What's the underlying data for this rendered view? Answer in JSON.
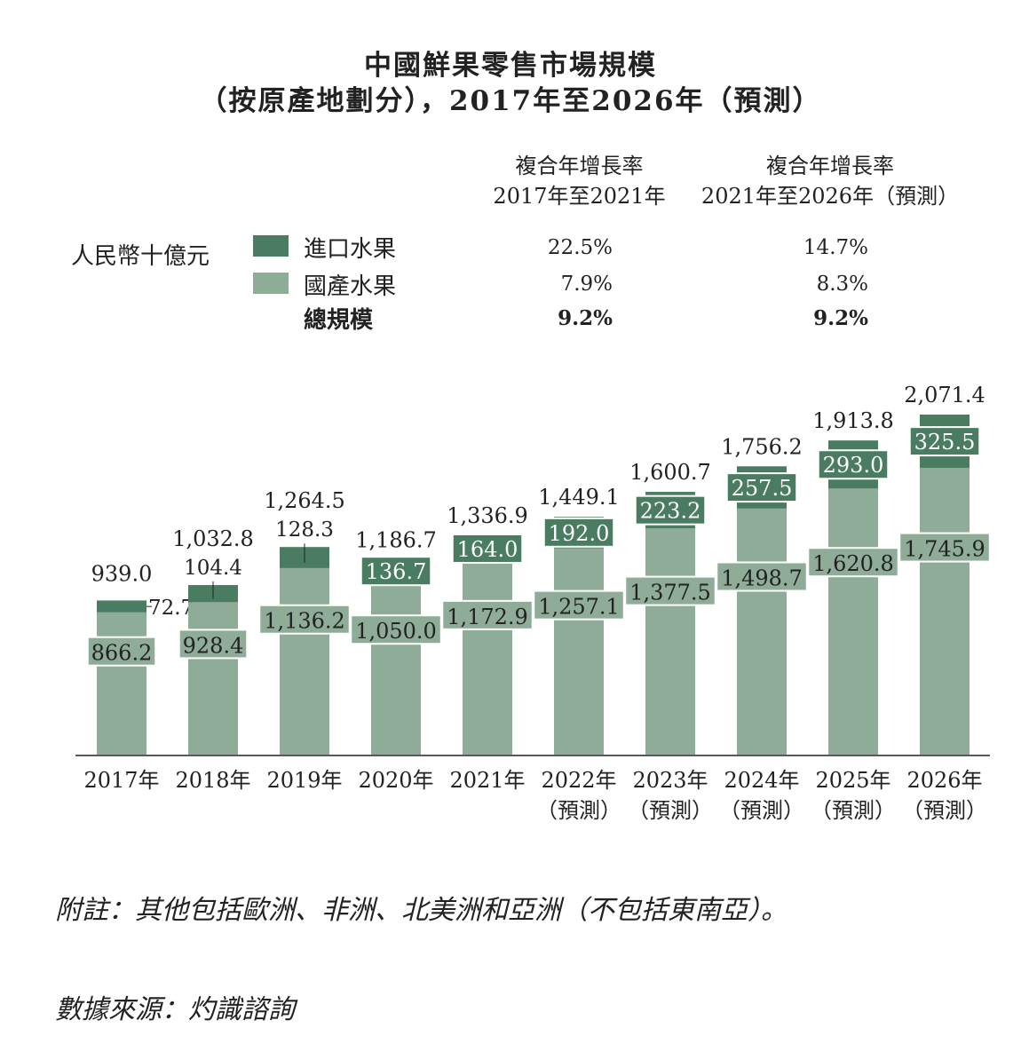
{
  "title": {
    "line1": "中國鮮果零售市場規模",
    "line2": "（按原產地劃分），2017年至2026年（預測）"
  },
  "unit_label": "人民幣十億元",
  "cagr_headers": [
    {
      "line1": "複合年增長率",
      "line2": "2017年至2021年"
    },
    {
      "line1": "複合年增長率",
      "line2": "2021年至2026年（預測）"
    }
  ],
  "legend": [
    {
      "label": "進口水果",
      "color": "#4a7c61",
      "cagr1": "22.5%",
      "cagr2": "14.7%"
    },
    {
      "label": "國產水果",
      "color": "#8fac98",
      "cagr1": "7.9%",
      "cagr2": "8.3%"
    },
    {
      "label": "總規模",
      "cagr1": "9.2%",
      "cagr2": "9.2%"
    }
  ],
  "chart_data": {
    "type": "bar",
    "stacked": true,
    "categories": [
      "2017年",
      "2018年",
      "2019年",
      "2020年",
      "2021年",
      "2022年",
      "2023年",
      "2024年",
      "2025年",
      "2026年"
    ],
    "category_sub": [
      "",
      "",
      "",
      "",
      "",
      "（預測）",
      "（預測）",
      "（預測）",
      "（預測）",
      "（預測）"
    ],
    "series": [
      {
        "name": "國產水果",
        "color": "#8fac98",
        "values": [
          866.2,
          928.4,
          1136.2,
          1050.0,
          1172.9,
          1257.1,
          1377.5,
          1498.7,
          1620.8,
          1745.9
        ],
        "labels": [
          "866.2",
          "928.4",
          "1,136.2",
          "1,050.0",
          "1,172.9",
          "1,257.1",
          "1,377.5",
          "1,498.7",
          "1,620.8",
          "1,745.9"
        ]
      },
      {
        "name": "進口水果",
        "color": "#4a7c61",
        "values": [
          72.7,
          104.4,
          128.3,
          136.7,
          164.0,
          192.0,
          223.2,
          257.5,
          293.0,
          325.5
        ],
        "labels": [
          "72.7",
          "104.4",
          "128.3",
          "136.7",
          "164.0",
          "192.0",
          "223.2",
          "257.5",
          "293.0",
          "325.5"
        ]
      }
    ],
    "totals": [
      "939.0",
      "1,032.8",
      "1,264.5",
      "1,186.7",
      "1,336.9",
      "1,449.1",
      "1,600.7",
      "1,756.2",
      "1,913.8",
      "2,071.4"
    ],
    "ylim": [
      0,
      2071.4
    ],
    "grid": false
  },
  "notes": {
    "note": "附註：其他包括歐洲、非洲、北美洲和亞洲（不包括東南亞）。",
    "source": "數據來源：灼識諮詢"
  }
}
